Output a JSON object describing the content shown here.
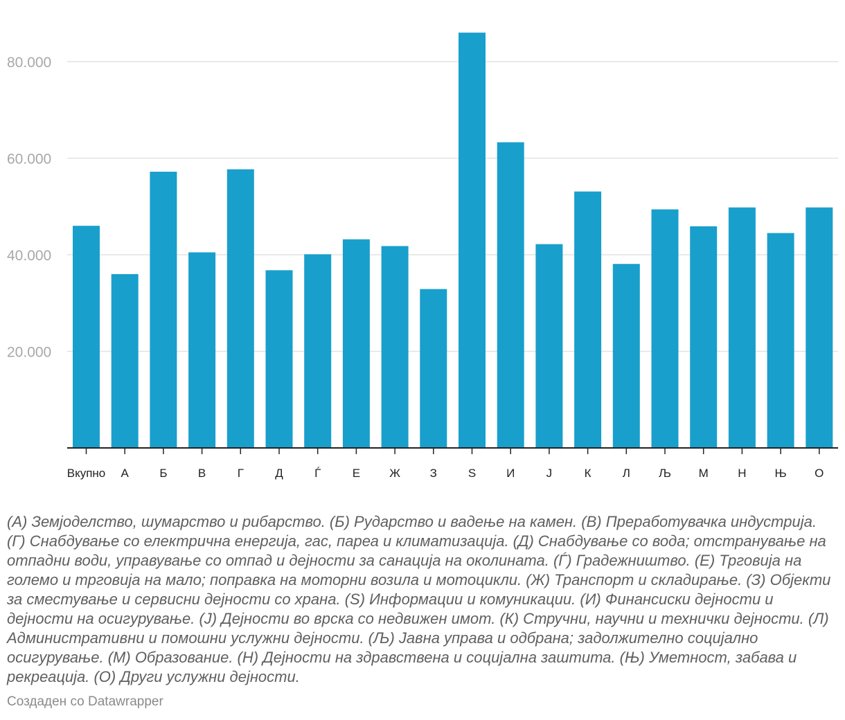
{
  "chart_data": {
    "type": "bar",
    "categories": [
      "Вкупно",
      "А",
      "Б",
      "В",
      "Г",
      "Д",
      "Ѓ",
      "Е",
      "Ж",
      "З",
      "Ѕ",
      "И",
      "Ј",
      "К",
      "Л",
      "Љ",
      "М",
      "Н",
      "Њ",
      "О"
    ],
    "values": [
      46000,
      36000,
      57200,
      40500,
      57700,
      36800,
      40100,
      43200,
      41800,
      32900,
      86000,
      63300,
      42200,
      53100,
      38100,
      49400,
      45900,
      49800,
      44500,
      49800
    ],
    "ylim": [
      0,
      90000
    ],
    "yticks": [
      20000,
      40000,
      60000,
      80000
    ],
    "ytick_labels": [
      "20.000",
      "40.000",
      "60.000",
      "80.000"
    ],
    "title": "",
    "xlabel": "",
    "ylabel": "",
    "grid": true,
    "bar_color": "#199fcc"
  },
  "footer": {
    "notes": "(А) Земјоделство, шумарство и рибарство. (Б) Рударство и вадење на камен. (В) Преработувачка индустрија. (Г) Снабдување со електрична енергија, гас, пареа и климатизација. (Д) Снабдување со вода; отстранување на отпадни води, управување со отпад и дејности за санација на околината. (Ѓ) Градежништво. (Е) Трговија на големо и трговија на мало; поправка на моторни возила и мотоцикли. (Ж) Транспорт и складирање. (З) Објекти за сместување и сервисни дејности со храна. (Ѕ) Информации и комуникации. (И) Финансиски дејности и дејности на осигурување. (Ј) Дејности во врска со недвижен имот. (К) Стручни, научни и технички дејности. (Л) Административни и помошни услужни дејности. (Љ) Јавна управа и одбрана; задолжително социјално осигурување. (М) Образование. (Н) Дејности на здравствена и социјална заштита. (Њ) Уметност, забава и рекреација. (О) Други услужни дејности.",
    "credit": "Создаден со Datawrapper"
  }
}
